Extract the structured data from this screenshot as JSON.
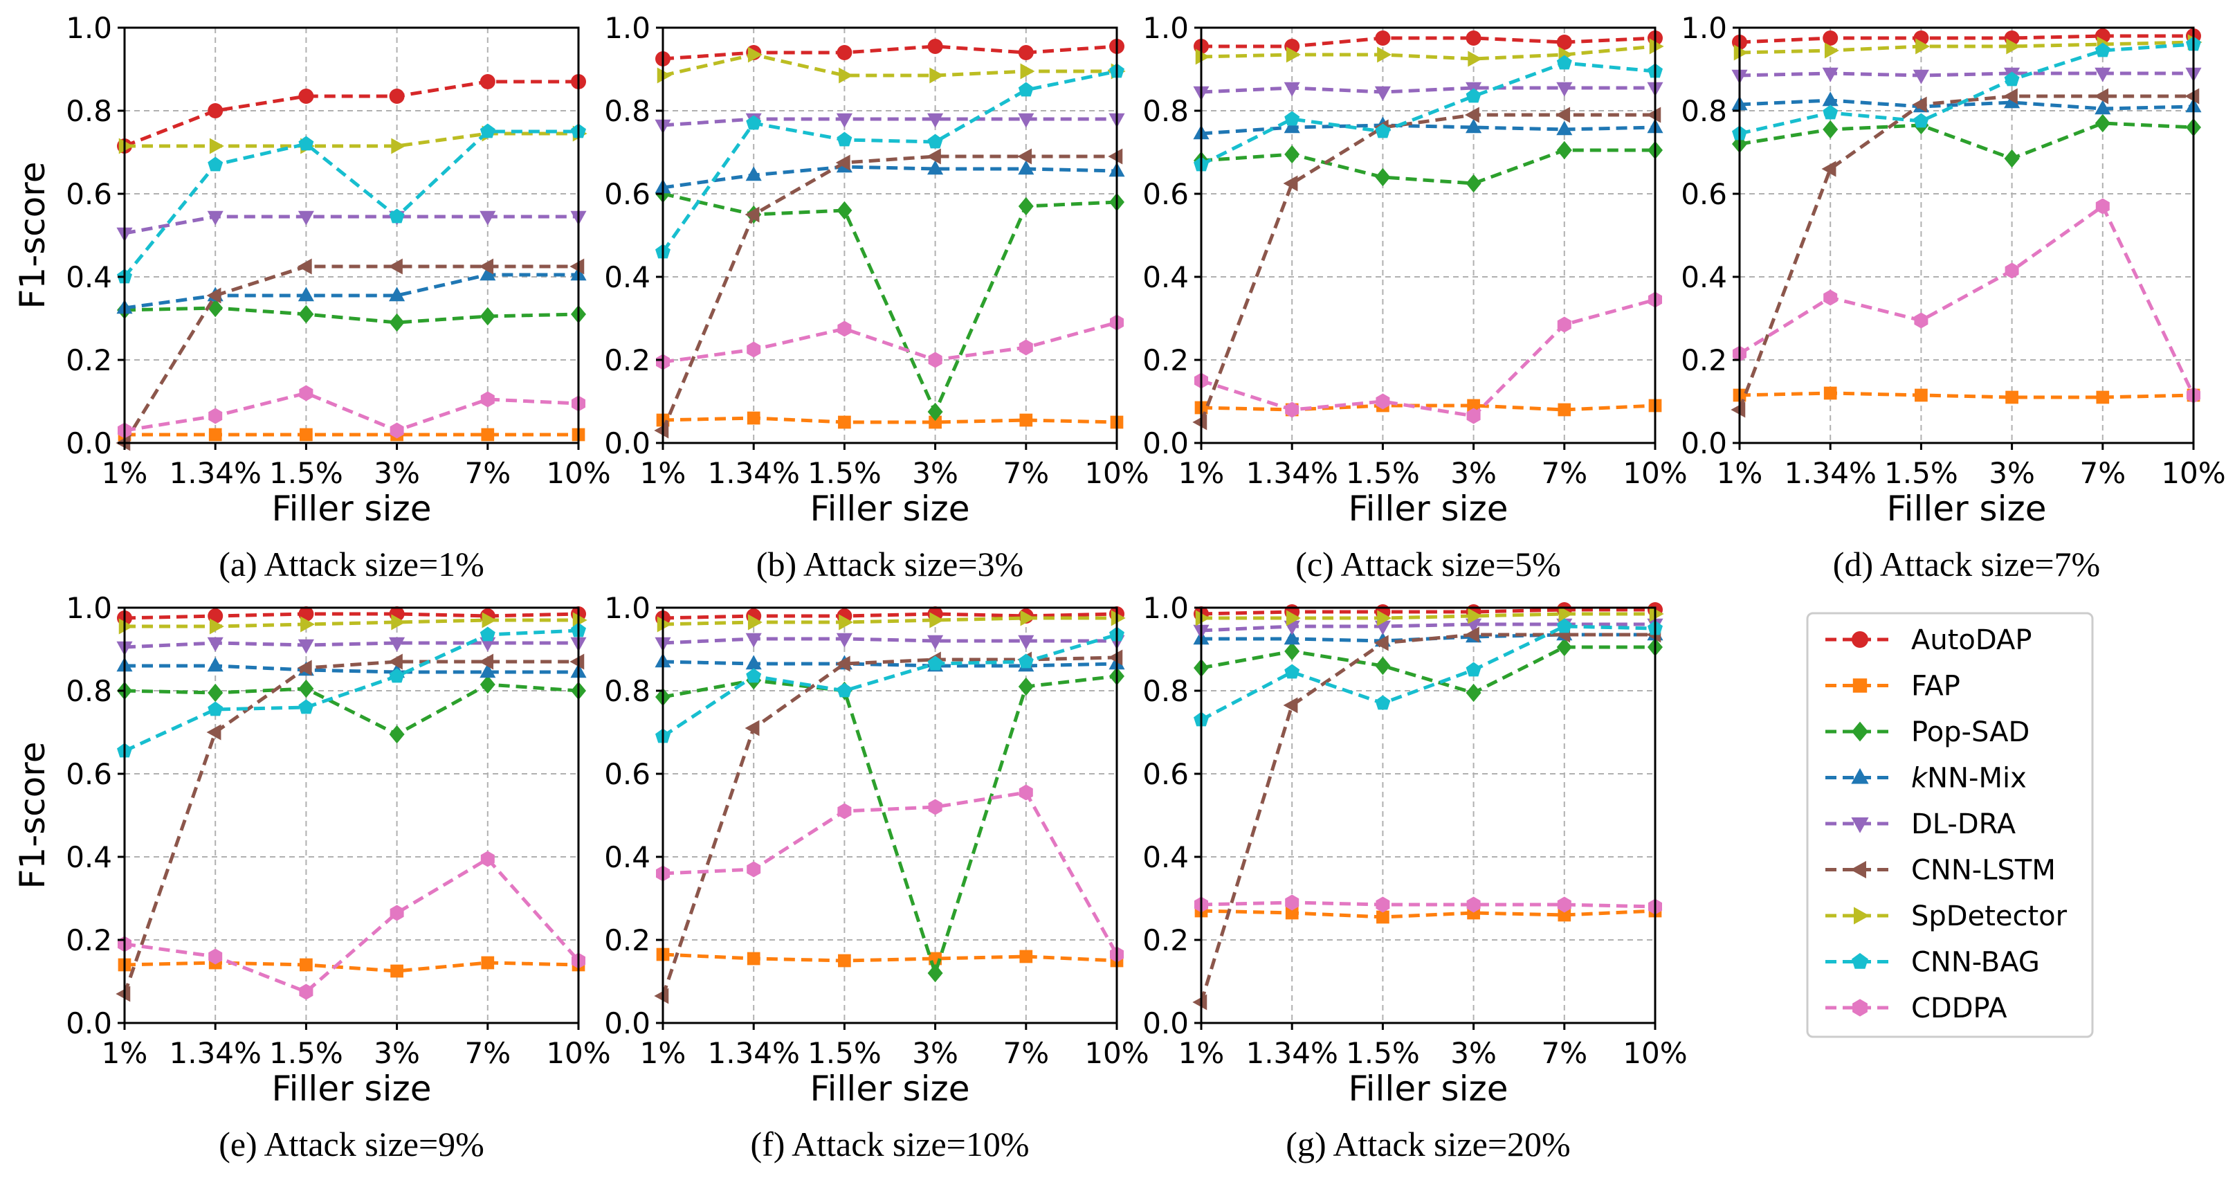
{
  "chart_data": {
    "type": "line",
    "x_categories": [
      "1%",
      "1.34%",
      "1.5%",
      "3%",
      "7%",
      "10%"
    ],
    "xlabel": "Filler size",
    "ylabel": "F1-score",
    "ylim": [
      0,
      1.0
    ],
    "yticks": [
      "0.0",
      "0.2",
      "0.4",
      "0.6",
      "0.8",
      "1.0"
    ],
    "grid": true,
    "legend_position": "bottom-right",
    "methods": [
      {
        "name": "AutoDAP",
        "color": "#d62728",
        "marker": "circle"
      },
      {
        "name": "FAP",
        "color": "#ff7f0e",
        "marker": "square"
      },
      {
        "name": "Pop-SAD",
        "color": "#2ca02c",
        "marker": "diamond"
      },
      {
        "name": "NN-Mix",
        "prefix": "k",
        "color": "#1f77b4",
        "marker": "triangle-up"
      },
      {
        "name": "DL-DRA",
        "color": "#9467bd",
        "marker": "triangle-down"
      },
      {
        "name": "CNN-LSTM",
        "color": "#8c564b",
        "marker": "triangle-left"
      },
      {
        "name": "SpDetector",
        "color": "#bcbd22",
        "marker": "triangle-right"
      },
      {
        "name": "CNN-BAG",
        "color": "#17becf",
        "marker": "pentagon"
      },
      {
        "name": "CDDPA",
        "color": "#e377c2",
        "marker": "hexagon"
      }
    ],
    "panels": [
      {
        "caption": "(a) Attack size=1%",
        "series": [
          [
            0.715,
            0.8,
            0.835,
            0.835,
            0.87,
            0.87
          ],
          [
            0.02,
            0.02,
            0.02,
            0.02,
            0.02,
            0.02
          ],
          [
            0.32,
            0.325,
            0.31,
            0.29,
            0.305,
            0.31
          ],
          [
            0.325,
            0.355,
            0.355,
            0.355,
            0.405,
            0.405
          ],
          [
            0.505,
            0.545,
            0.545,
            0.545,
            0.545,
            0.545
          ],
          [
            0.0,
            0.355,
            0.425,
            0.425,
            0.425,
            0.425
          ],
          [
            0.715,
            0.715,
            0.715,
            0.715,
            0.745,
            0.745
          ],
          [
            0.4,
            0.67,
            0.72,
            0.545,
            0.75,
            0.75
          ],
          [
            0.03,
            0.065,
            0.12,
            0.03,
            0.105,
            0.095
          ]
        ]
      },
      {
        "caption": "(b) Attack size=3%",
        "series": [
          [
            0.925,
            0.94,
            0.94,
            0.955,
            0.94,
            0.955
          ],
          [
            0.055,
            0.06,
            0.05,
            0.05,
            0.055,
            0.05
          ],
          [
            0.6,
            0.55,
            0.56,
            0.075,
            0.57,
            0.58
          ],
          [
            0.615,
            0.645,
            0.665,
            0.66,
            0.66,
            0.655
          ],
          [
            0.765,
            0.78,
            0.78,
            0.78,
            0.78,
            0.78
          ],
          [
            0.03,
            0.55,
            0.675,
            0.69,
            0.69,
            0.69
          ],
          [
            0.885,
            0.935,
            0.885,
            0.885,
            0.895,
            0.895
          ],
          [
            0.46,
            0.77,
            0.73,
            0.725,
            0.85,
            0.895
          ],
          [
            0.195,
            0.225,
            0.275,
            0.2,
            0.23,
            0.29
          ]
        ]
      },
      {
        "caption": "(c) Attack size=5%",
        "series": [
          [
            0.955,
            0.955,
            0.975,
            0.975,
            0.965,
            0.975
          ],
          [
            0.085,
            0.08,
            0.09,
            0.09,
            0.08,
            0.09
          ],
          [
            0.68,
            0.695,
            0.64,
            0.625,
            0.705,
            0.705
          ],
          [
            0.745,
            0.76,
            0.765,
            0.76,
            0.755,
            0.76
          ],
          [
            0.845,
            0.855,
            0.845,
            0.855,
            0.855,
            0.855
          ],
          [
            0.05,
            0.625,
            0.76,
            0.79,
            0.79,
            0.79
          ],
          [
            0.93,
            0.935,
            0.935,
            0.925,
            0.935,
            0.955
          ],
          [
            0.67,
            0.78,
            0.75,
            0.835,
            0.915,
            0.895
          ],
          [
            0.15,
            0.08,
            0.1,
            0.065,
            0.285,
            0.345
          ]
        ]
      },
      {
        "caption": "(d) Attack size=7%",
        "series": [
          [
            0.965,
            0.975,
            0.975,
            0.975,
            0.98,
            0.98
          ],
          [
            0.115,
            0.12,
            0.115,
            0.11,
            0.11,
            0.115
          ],
          [
            0.72,
            0.755,
            0.765,
            0.685,
            0.77,
            0.76
          ],
          [
            0.815,
            0.825,
            0.81,
            0.82,
            0.805,
            0.81
          ],
          [
            0.885,
            0.89,
            0.885,
            0.89,
            0.89,
            0.89
          ],
          [
            0.08,
            0.66,
            0.815,
            0.835,
            0.835,
            0.835
          ],
          [
            0.94,
            0.945,
            0.955,
            0.955,
            0.96,
            0.965
          ],
          [
            0.745,
            0.795,
            0.775,
            0.875,
            0.945,
            0.96
          ],
          [
            0.215,
            0.35,
            0.295,
            0.415,
            0.57,
            0.115
          ]
        ]
      },
      {
        "caption": "(e) Attack size=9%",
        "series": [
          [
            0.975,
            0.98,
            0.985,
            0.985,
            0.98,
            0.985
          ],
          [
            0.14,
            0.145,
            0.14,
            0.125,
            0.145,
            0.14
          ],
          [
            0.8,
            0.795,
            0.805,
            0.695,
            0.815,
            0.8
          ],
          [
            0.86,
            0.86,
            0.85,
            0.845,
            0.845,
            0.845
          ],
          [
            0.905,
            0.915,
            0.91,
            0.915,
            0.915,
            0.915
          ],
          [
            0.07,
            0.7,
            0.855,
            0.87,
            0.87,
            0.87
          ],
          [
            0.955,
            0.955,
            0.96,
            0.965,
            0.97,
            0.97
          ],
          [
            0.655,
            0.755,
            0.76,
            0.835,
            0.935,
            0.945
          ],
          [
            0.19,
            0.16,
            0.075,
            0.265,
            0.395,
            0.15
          ]
        ]
      },
      {
        "caption": "(f) Attack size=10%",
        "series": [
          [
            0.975,
            0.98,
            0.98,
            0.985,
            0.98,
            0.985
          ],
          [
            0.165,
            0.155,
            0.15,
            0.155,
            0.16,
            0.15
          ],
          [
            0.785,
            0.825,
            0.8,
            0.12,
            0.81,
            0.835
          ],
          [
            0.87,
            0.865,
            0.865,
            0.86,
            0.86,
            0.865
          ],
          [
            0.915,
            0.925,
            0.925,
            0.92,
            0.92,
            0.92
          ],
          [
            0.065,
            0.71,
            0.865,
            0.875,
            0.875,
            0.88
          ],
          [
            0.96,
            0.965,
            0.965,
            0.97,
            0.975,
            0.975
          ],
          [
            0.69,
            0.835,
            0.8,
            0.865,
            0.87,
            0.935
          ],
          [
            0.36,
            0.37,
            0.51,
            0.52,
            0.555,
            0.165
          ]
        ]
      },
      {
        "caption": "(g) Attack size=20%",
        "series": [
          [
            0.985,
            0.99,
            0.99,
            0.99,
            0.995,
            0.995
          ],
          [
            0.27,
            0.265,
            0.255,
            0.265,
            0.26,
            0.27
          ],
          [
            0.855,
            0.895,
            0.86,
            0.795,
            0.905,
            0.905
          ],
          [
            0.925,
            0.925,
            0.92,
            0.93,
            0.935,
            0.935
          ],
          [
            0.945,
            0.955,
            0.955,
            0.96,
            0.96,
            0.96
          ],
          [
            0.05,
            0.765,
            0.915,
            0.935,
            0.935,
            0.935
          ],
          [
            0.975,
            0.975,
            0.975,
            0.98,
            0.985,
            0.985
          ],
          [
            0.73,
            0.845,
            0.77,
            0.85,
            0.955,
            0.95
          ],
          [
            0.285,
            0.29,
            0.285,
            0.285,
            0.285,
            0.28
          ]
        ]
      }
    ]
  }
}
